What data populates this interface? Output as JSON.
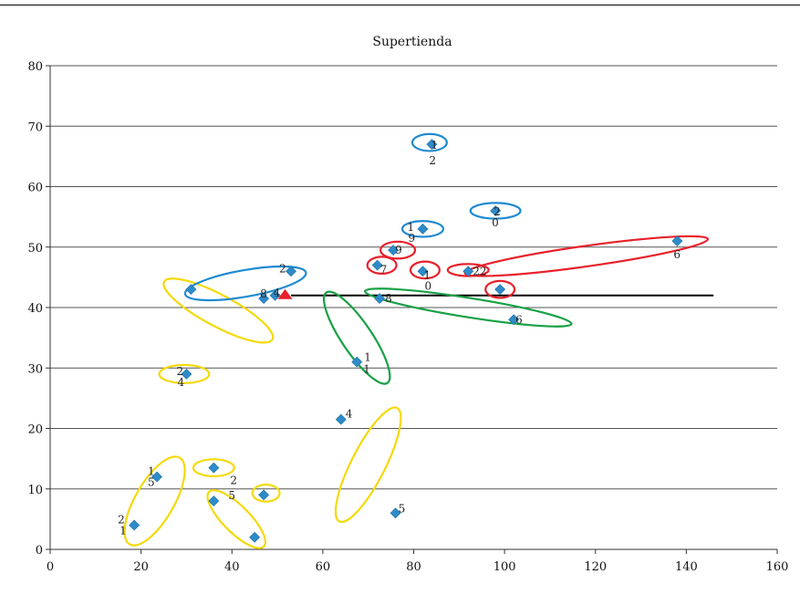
{
  "chart_data": {
    "type": "scatter",
    "title": "Supertienda",
    "xlabel": "",
    "ylabel": "",
    "xlim": [
      0,
      160
    ],
    "ylim": [
      0,
      80
    ],
    "xticks": [
      "0",
      "20",
      "40",
      "60",
      "80",
      "100",
      "120",
      "140",
      "160"
    ],
    "yticks": [
      "0",
      "10",
      "20",
      "30",
      "40",
      "50",
      "60",
      "70",
      "80"
    ],
    "grid": "horizontal",
    "marker_color": "#2e8bc9",
    "points": [
      {
        "x": 18.5,
        "y": 4,
        "labels": [
          {
            "text": "2",
            "dx": -18,
            "dy": -2
          },
          {
            "text": "1",
            "dx": -16,
            "dy": 10
          }
        ]
      },
      {
        "x": 23.5,
        "y": 12,
        "labels": [
          {
            "text": "1",
            "dx": -10,
            "dy": -2
          },
          {
            "text": "5",
            "dx": -10,
            "dy": 10
          }
        ]
      },
      {
        "x": 36,
        "y": 13.5,
        "labels": [
          {
            "text": "2",
            "dx": 18,
            "dy": 18
          }
        ]
      },
      {
        "x": 36,
        "y": 8,
        "labels": [
          {
            "text": "5",
            "dx": 16,
            "dy": -2
          }
        ]
      },
      {
        "x": 45,
        "y": 2,
        "labels": []
      },
      {
        "x": 47,
        "y": 9,
        "labels": []
      },
      {
        "x": 30,
        "y": 29,
        "labels": [
          {
            "text": "2",
            "dx": -11,
            "dy": 1
          },
          {
            "text": "4",
            "dx": -10,
            "dy": 13
          }
        ]
      },
      {
        "x": 31,
        "y": 43,
        "labels": []
      },
      {
        "x": 47,
        "y": 41.5,
        "labels": [
          {
            "text": "8",
            "dx": -4,
            "dy": -1
          }
        ]
      },
      {
        "x": 49.5,
        "y": 42,
        "labels": [
          {
            "text": "4",
            "dx": -2,
            "dy": 1
          }
        ]
      },
      {
        "x": 53,
        "y": 46,
        "labels": [
          {
            "text": "2",
            "dx": -13,
            "dy": 1
          }
        ]
      },
      {
        "x": 64,
        "y": 21.5,
        "labels": [
          {
            "text": "4",
            "dx": 5,
            "dy": -2
          }
        ]
      },
      {
        "x": 67.5,
        "y": 31,
        "labels": [
          {
            "text": "1",
            "dx": 8,
            "dy": -1
          },
          {
            "text": "1",
            "dx": 7,
            "dy": 12
          }
        ]
      },
      {
        "x": 72,
        "y": 47,
        "labels": [
          {
            "text": "7",
            "dx": 3,
            "dy": 9
          }
        ]
      },
      {
        "x": 72.5,
        "y": 41.5,
        "labels": [
          {
            "text": "8",
            "dx": 6,
            "dy": 4
          }
        ]
      },
      {
        "x": 75.5,
        "y": 49.5,
        "labels": [
          {
            "text": "9",
            "dx": 2,
            "dy": 4
          }
        ]
      },
      {
        "x": 76,
        "y": 6,
        "labels": [
          {
            "text": "5",
            "dx": 3,
            "dy": -1
          }
        ]
      },
      {
        "x": 82,
        "y": 46,
        "labels": [
          {
            "text": "1",
            "dx": 1,
            "dy": 8
          },
          {
            "text": "0",
            "dx": 2,
            "dy": 20
          }
        ]
      },
      {
        "x": 82,
        "y": 53,
        "labels": [
          {
            "text": "1",
            "dx": -17,
            "dy": 2
          },
          {
            "text": "9",
            "dx": -16,
            "dy": 14
          }
        ]
      },
      {
        "x": 84,
        "y": 67,
        "labels": [
          {
            "text": "1",
            "dx": -1,
            "dy": 5
          },
          {
            "text": "2",
            "dx": -3,
            "dy": 22
          }
        ]
      },
      {
        "x": 92,
        "y": 46,
        "labels": [
          {
            "text": "22",
            "dx": 5,
            "dy": 4
          }
        ]
      },
      {
        "x": 98,
        "y": 56,
        "labels": [
          {
            "text": "2",
            "dx": -2,
            "dy": 5
          },
          {
            "text": "0",
            "dx": -4,
            "dy": 17
          }
        ]
      },
      {
        "x": 99,
        "y": 43,
        "labels": []
      },
      {
        "x": 102,
        "y": 38,
        "labels": [
          {
            "text": "6",
            "dx": 2,
            "dy": 4
          }
        ]
      },
      {
        "x": 138,
        "y": 51,
        "labels": [
          {
            "text": "6",
            "dx": -4,
            "dy": 19
          }
        ]
      }
    ],
    "marker_special": {
      "x": 51.5,
      "y": 42,
      "shape": "triangle",
      "color": "#e8202a"
    },
    "reference_line": {
      "x": [
        53,
        146
      ],
      "y": 42,
      "color": "#000000"
    },
    "ellipses": [
      {
        "cx": 23,
        "cy": 8,
        "rx": 11,
        "ry": 3.2,
        "angle": -60,
        "color": "#f5d90a"
      },
      {
        "cx": 36,
        "cy": 13.5,
        "rx": 4.5,
        "ry": 1.4,
        "angle": 0,
        "color": "#f5d90a"
      },
      {
        "cx": 47.5,
        "cy": 9.3,
        "rx": 3,
        "ry": 1.4,
        "angle": 0,
        "color": "#f5d90a"
      },
      {
        "cx": 41,
        "cy": 5,
        "rx": 8.5,
        "ry": 2.2,
        "angle": 45,
        "color": "#f5d90a"
      },
      {
        "cx": 29.5,
        "cy": 29,
        "rx": 5.5,
        "ry": 1.5,
        "angle": 0,
        "color": "#f5d90a"
      },
      {
        "cx": 37,
        "cy": 39.5,
        "rx": 13.5,
        "ry": 2.6,
        "angle": 28,
        "color": "#f5d90a"
      },
      {
        "cx": 70,
        "cy": 14,
        "rx": 14,
        "ry": 2.8,
        "angle": -63,
        "color": "#f5d90a"
      },
      {
        "cx": 43,
        "cy": 44,
        "rx": 13.5,
        "ry": 2.2,
        "angle": -10,
        "color": "#1f8ad0"
      },
      {
        "cx": 83.5,
        "cy": 67.3,
        "rx": 3.8,
        "ry": 1.4,
        "angle": 0,
        "color": "#1f8ad0"
      },
      {
        "cx": 82,
        "cy": 53,
        "rx": 4.5,
        "ry": 1.3,
        "angle": 0,
        "color": "#1f8ad0"
      },
      {
        "cx": 98,
        "cy": 56,
        "rx": 5.5,
        "ry": 1.3,
        "angle": 0,
        "color": "#1f8ad0"
      },
      {
        "cx": 73,
        "cy": 47,
        "rx": 3.2,
        "ry": 1.4,
        "angle": 0,
        "color": "#e8202a"
      },
      {
        "cx": 76.5,
        "cy": 49.5,
        "rx": 3.8,
        "ry": 1.4,
        "angle": 0,
        "color": "#e8202a"
      },
      {
        "cx": 82.5,
        "cy": 46.2,
        "rx": 3.2,
        "ry": 1.4,
        "angle": 0,
        "color": "#e8202a"
      },
      {
        "cx": 92,
        "cy": 46.2,
        "rx": 4.5,
        "ry": 1.0,
        "angle": 0,
        "color": "#e8202a"
      },
      {
        "cx": 99,
        "cy": 43,
        "rx": 3.2,
        "ry": 1.4,
        "angle": 0,
        "color": "#e8202a"
      },
      {
        "cx": 118,
        "cy": 48.5,
        "rx": 27,
        "ry": 1.7,
        "angle": -8,
        "color": "#e8202a"
      },
      {
        "cx": 67.5,
        "cy": 35,
        "rx": 12,
        "ry": 2.5,
        "angle": 56,
        "color": "#18a046"
      },
      {
        "cx": 92,
        "cy": 40,
        "rx": 23,
        "ry": 1.6,
        "angle": 9,
        "color": "#18a046"
      }
    ]
  }
}
